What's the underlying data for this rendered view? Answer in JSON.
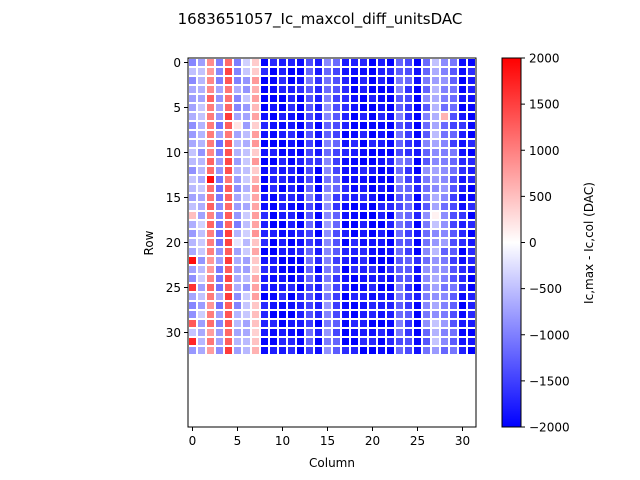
{
  "chart_data": {
    "type": "heatmap",
    "title": "1683651057_Ic_maxcol_diff_unitsDAC",
    "xlabel": "Column",
    "ylabel": "Row",
    "colorbar_label": "Ic,max - Ic,col (DAC)",
    "colormap": "bwr",
    "colors": {
      "low": "#0000ff",
      "mid": "#ffffff",
      "high": "#ff0000"
    },
    "clim": [
      -2000,
      2000
    ],
    "xlim": [
      -0.5,
      31.5
    ],
    "ylim": [
      40.5,
      -0.5
    ],
    "x_ticks": [
      0,
      5,
      10,
      15,
      20,
      25,
      30
    ],
    "x_tick_labels": [
      "0",
      "5",
      "10",
      "15",
      "20",
      "25",
      "30"
    ],
    "y_ticks": [
      0,
      5,
      10,
      15,
      20,
      25,
      30
    ],
    "y_tick_labels": [
      "0",
      "5",
      "10",
      "15",
      "20",
      "25",
      "30"
    ],
    "cbar_ticks": [
      -2000,
      -1500,
      -1000,
      -500,
      0,
      500,
      1000,
      1500,
      2000
    ],
    "cbar_tick_labels": [
      "−2000",
      "−1500",
      "−1000",
      "−500",
      "0",
      "500",
      "1000",
      "1500",
      "2000"
    ],
    "n_columns": 32,
    "n_rows_with_data": 33,
    "column_typical_values": [
      -700,
      -600,
      1000,
      -900,
      1300,
      -800,
      -600,
      600,
      -1900,
      -1900,
      -1900,
      -1900,
      -1900,
      -1300,
      -1800,
      -1000,
      -1400,
      -1900,
      -1900,
      -1900,
      -1900,
      -1900,
      -1900,
      -1200,
      -1400,
      -1900,
      -1100,
      -700,
      -1000,
      -1300,
      -1800,
      -1900
    ],
    "notable_cells": [
      {
        "row": 0,
        "col": 2,
        "value": 900
      },
      {
        "row": 7,
        "col": 5,
        "value": 200
      },
      {
        "row": 13,
        "col": 2,
        "value": 1900
      },
      {
        "row": 17,
        "col": 0,
        "value": 500
      },
      {
        "row": 20,
        "col": 5,
        "value": -200
      },
      {
        "row": 22,
        "col": 0,
        "value": 1900
      },
      {
        "row": 25,
        "col": 0,
        "value": 1600
      },
      {
        "row": 29,
        "col": 0,
        "value": 1300
      },
      {
        "row": 31,
        "col": 0,
        "value": 1700
      },
      {
        "row": 6,
        "col": 28,
        "value": 600
      },
      {
        "row": 17,
        "col": 27,
        "value": 100
      },
      {
        "row": 10,
        "col": 7,
        "value": 400
      },
      {
        "row": 15,
        "col": 7,
        "value": 700
      }
    ]
  }
}
